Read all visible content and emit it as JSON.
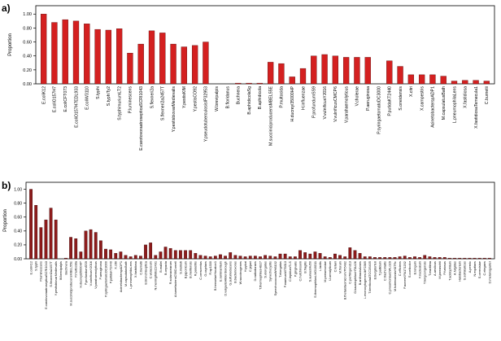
{
  "chart_data": [
    {
      "type": "bar",
      "label": "a)",
      "y_label": "Proportion",
      "color": "#d42020",
      "edge": "#5a0a0a",
      "categories": [
        "E.coliK12",
        "E.coliO157H7",
        "E.coliCFT073",
        "E.coliO157H7EDL933",
        "E.coliW3110",
        "S.typhi",
        "S.typhiTy2",
        "S.typhimuriumLT2",
        "P.luminescens",
        "E.carotovoraatrosepticaSCRI1043",
        "S.flexneri2a",
        "S.flexneri2a2457T",
        "Y.pestisbiovarMedievalis",
        "Y.pestisKIM",
        "Y.pestisCO92",
        "Y.pseudotuberculosisIP32953",
        "W.brevipalpis",
        "B.floridanus",
        "Buchnera",
        "B.aphidicolaSg",
        "B.aphidicola",
        "M.succiniciproducensMBEL55E",
        "P.multocida",
        "H.ducreyi35000HP",
        "H.influenzae",
        "P.profundumSS9",
        "V.vulnificusYJ016",
        "V.vulnificusCMCP6",
        "V.parahaemolyticus",
        "V.cholerae",
        "P.aeruginosa",
        "P.syringaetomatoDC3000",
        "P.putidaKT2440",
        "S.oneidensis",
        "X.citri",
        "X.campestris",
        "AcinetobacterspADP1",
        "M.capsulatusBath",
        "L.pneumophilaLens",
        "X.fastidiosa",
        "X.fastidiosaTemecula1",
        "C.burnetii"
      ],
      "values": [
        1.0,
        0.88,
        0.92,
        0.9,
        0.86,
        0.78,
        0.77,
        0.79,
        0.44,
        0.57,
        0.76,
        0.73,
        0.57,
        0.53,
        0.55,
        0.6,
        0,
        0,
        0.01,
        0.01,
        0.01,
        0.31,
        0.29,
        0.1,
        0.22,
        0.4,
        0.42,
        0.4,
        0.38,
        0.38,
        0.38,
        0,
        0.33,
        0.25,
        0.13,
        0.13,
        0.13,
        0.11,
        0.04,
        0.05,
        0.05,
        0.04
      ],
      "ylim": [
        0,
        1.12
      ],
      "yticks": [
        {
          "value": 0,
          "label": "0.00"
        },
        {
          "value": 0.2,
          "label": "0.20"
        },
        {
          "value": 0.4,
          "label": "0.40"
        },
        {
          "value": 0.6,
          "label": "0.60"
        },
        {
          "value": 0.8,
          "label": "0.80"
        },
        {
          "value": 1,
          "label": "1.00"
        }
      ]
    },
    {
      "type": "bar",
      "label": "b)",
      "y_label": "Proportion",
      "color": "#8e1b1b",
      "edge": "#3a0505",
      "categories": [
        "E.coliK12",
        "S.typhi",
        "P.luminescens",
        "E.carotovoraatrosepticaSCRI1043",
        "S.flexneri2a2457T",
        "Y.pestisbiovarMedievalis",
        "W.brevipalpis",
        "Buchnera",
        "M.succiniciproducensMBEL55E",
        "P.multocida",
        "H.ducreyi35000HP",
        "P.profundumSS9",
        "V.vulnificusYJ016",
        "V.parahaemolyticus",
        "P.aeruginosa",
        "P.syringaetomatoDC3000",
        "P.putidaKT2440",
        "X.citri",
        "AcinetobacterspADP1",
        "M.capsulatusBath",
        "L.pneumophilaLens",
        "X.fastidiosa",
        "C.burnetii",
        "B.bronchiseptica",
        "C.violaceum",
        "N.meningitidisZ2491",
        "B.mallei",
        "B.cepacia",
        "R.solanacearum",
        "A.tumefaciensC58Cornell",
        "S.meliloti",
        "B.japonicum",
        "B.melitensis",
        "R.palustris",
        "C.crescentus",
        "G.oxydans",
        "R.sp1330",
        "B.henselaeHouston1",
        "E.ruminantium",
        "D.vulgarisHildenborough",
        "G.sulfurreducens",
        "B.bacteriovorus",
        "W.succinogenes",
        "H.pylori",
        "C.jejuni",
        "D.radiodurans",
        "T.thermophilusHB27",
        "S.elongatus",
        "Synechocystis",
        "SynechococcusWH8102",
        "T.elongatus",
        "P.marinusMIT9313",
        "C.tepidumTLS",
        "P.gingivalis",
        "C.hutchinsonii",
        "B.fragilis",
        "S.aureusMu50",
        "S.thermophilusLMG18311",
        "L.lactis",
        "M.pneumoniae",
        "U.urealyticum",
        "C.tetani",
        "M.florum",
        "B.thetaiotaomicronVPI5482",
        "C.perfringens13",
        "G.kaustophilusHTA426",
        "B.anthracisAmes",
        "L.monocytogenes4bF2365",
        "T.denticolaATCC35405",
        "B.burgdorferi",
        "T.pallidum",
        "C.trachomatis",
        "C.pneumoniaeCWL029",
        "M.tuberculosisH37Rv",
        "C.efficiens",
        "P.acnesKPA171202",
        "S.coelicolor",
        "B.longum",
        "F.nucleatum",
        "T.tengcongensis",
        "T.maritima",
        "A.aeolicus",
        "M.jannaschii",
        "P.furiosus",
        "T.acidophilum",
        "A.fulgidus",
        "Halobacterium",
        "S.solfataricus",
        "A.pernix",
        "N.equitans",
        "S.cerevisiae",
        "C.elegans",
        "D.melanogaster"
      ],
      "values": [
        1.0,
        0.77,
        0.45,
        0.56,
        0.73,
        0.56,
        0,
        0.01,
        0.31,
        0.29,
        0.1,
        0.4,
        0.42,
        0.38,
        0.26,
        0.14,
        0.13,
        0.08,
        0.1,
        0.05,
        0.03,
        0.05,
        0.04,
        0.2,
        0.23,
        0.05,
        0.1,
        0.17,
        0.15,
        0.12,
        0.12,
        0.12,
        0.12,
        0.08,
        0.05,
        0.04,
        0.03,
        0.04,
        0.06,
        0.04,
        0.09,
        0.05,
        0.04,
        0.03,
        0.04,
        0.04,
        0.03,
        0.05,
        0.04,
        0.03,
        0.07,
        0.07,
        0.03,
        0.03,
        0.12,
        0.09,
        0.07,
        0.1,
        0.08,
        0.03,
        0.02,
        0.07,
        0.05,
        0.03,
        0.16,
        0.12,
        0.08,
        0.03,
        0.03,
        0.02,
        0.02,
        0.02,
        0.02,
        0.02,
        0.03,
        0.04,
        0.02,
        0.03,
        0.02,
        0.05,
        0.03,
        0.02,
        0.02,
        0.02,
        0.01,
        0.01,
        0.01,
        0.01,
        0.01,
        0.01,
        0.01,
        0.01,
        0.01
      ],
      "ylim": [
        0,
        1.1
      ],
      "yticks": [
        {
          "value": 0,
          "label": "0.00"
        },
        {
          "value": 0.2,
          "label": "0.20"
        },
        {
          "value": 0.4,
          "label": "0.40"
        },
        {
          "value": 0.6,
          "label": "0.60"
        },
        {
          "value": 0.8,
          "label": "0.80"
        },
        {
          "value": 1,
          "label": "1.00"
        }
      ]
    }
  ]
}
